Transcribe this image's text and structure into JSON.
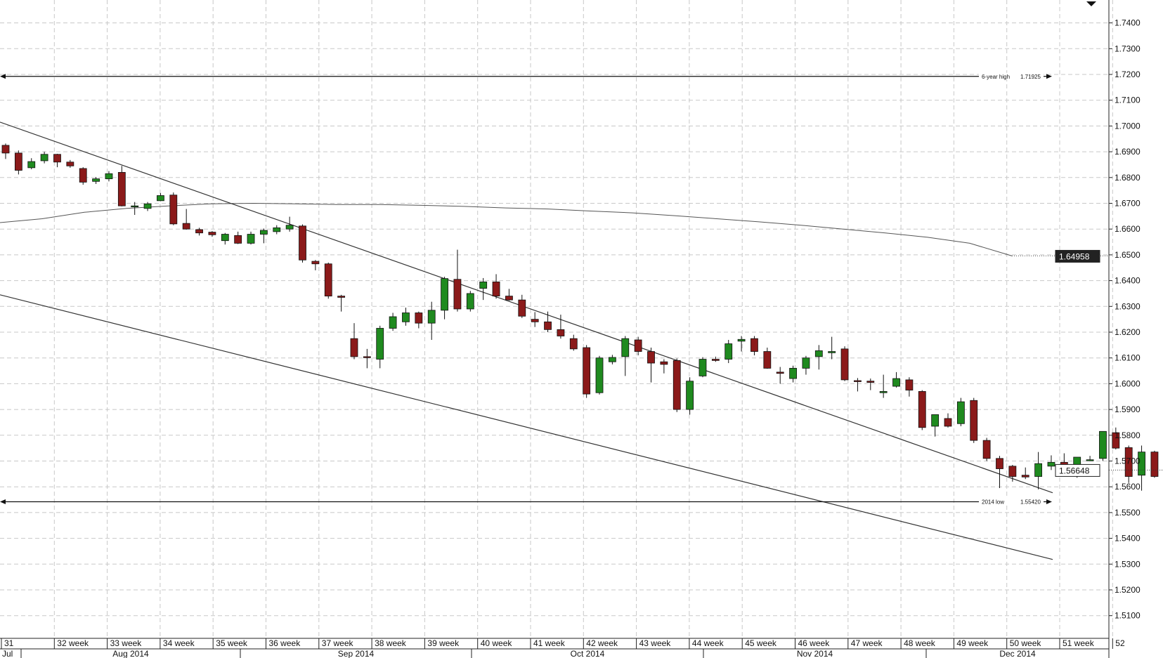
{
  "chart_data": {
    "type": "candlestick",
    "y_axis": {
      "range": [
        1.5005,
        1.7485
      ],
      "ticks": [
        "1.5100",
        "1.5200",
        "1.5300",
        "1.5400",
        "1.5500",
        "1.5600",
        "1.5700",
        "1.5800",
        "1.5900",
        "1.6000",
        "1.6100",
        "1.6200",
        "1.6300",
        "1.6400",
        "1.6500",
        "1.6600",
        "1.6700",
        "1.6800",
        "1.6900",
        "1.7000",
        "1.7100",
        "1.7200",
        "1.7300",
        "1.7400"
      ]
    },
    "week_labels": [
      "31",
      "32 week",
      "33 week",
      "34 week",
      "35 week",
      "36 week",
      "37 week",
      "38 week",
      "39 week",
      "40 week",
      "41 week",
      "42 week",
      "43 week",
      "44 week",
      "45 week",
      "46 week",
      "47 week",
      "48 week",
      "49 week",
      "50 week",
      "51 week",
      "52"
    ],
    "month_labels": [
      "Jul",
      "Aug 2014",
      "Sep 2014",
      "Oct 2014",
      "Nov 2014",
      "Dec 2014"
    ],
    "levels": [
      {
        "label": "6-year high",
        "value_text": "1.71925",
        "value": 1.71925
      },
      {
        "label": "2014 low",
        "value_text": "1.55420",
        "value": 1.5542
      }
    ],
    "price_boxes": [
      {
        "text": "1.64958",
        "value": 1.64958,
        "style": "dark"
      },
      {
        "text": "1.56648",
        "value": 1.56648,
        "style": "light"
      }
    ],
    "candles": [
      [
        1.6925,
        1.6932,
        1.6872,
        1.6895
      ],
      [
        1.6895,
        1.6905,
        1.6812,
        1.6828
      ],
      [
        1.6838,
        1.6875,
        1.6832,
        1.6862
      ],
      [
        1.6865,
        1.69,
        1.6855,
        1.689
      ],
      [
        1.689,
        1.6892,
        1.684,
        1.686
      ],
      [
        1.686,
        1.6868,
        1.6838,
        1.6845
      ],
      [
        1.6835,
        1.684,
        1.6772,
        1.6782
      ],
      [
        1.6785,
        1.6802,
        1.6775,
        1.6795
      ],
      [
        1.6795,
        1.6825,
        1.6785,
        1.6815
      ],
      [
        1.682,
        1.6845,
        1.6688,
        1.669
      ],
      [
        1.669,
        1.6705,
        1.6655,
        1.669
      ],
      [
        1.668,
        1.6705,
        1.667,
        1.6698
      ],
      [
        1.671,
        1.674,
        1.6708,
        1.673
      ],
      [
        1.6732,
        1.6742,
        1.6615,
        1.662
      ],
      [
        1.6622,
        1.6678,
        1.6598,
        1.66
      ],
      [
        1.6598,
        1.6605,
        1.6575,
        1.6585
      ],
      [
        1.6588,
        1.6592,
        1.657,
        1.6578
      ],
      [
        1.6555,
        1.6585,
        1.654,
        1.658
      ],
      [
        1.6575,
        1.659,
        1.6542,
        1.6545
      ],
      [
        1.6545,
        1.659,
        1.654,
        1.658
      ],
      [
        1.658,
        1.6602,
        1.6545,
        1.6595
      ],
      [
        1.659,
        1.6615,
        1.658,
        1.6605
      ],
      [
        1.66,
        1.6648,
        1.659,
        1.6615
      ],
      [
        1.6612,
        1.6618,
        1.647,
        1.648
      ],
      [
        1.6475,
        1.648,
        1.644,
        1.6465
      ],
      [
        1.6465,
        1.647,
        1.633,
        1.634
      ],
      [
        1.634,
        1.6345,
        1.628,
        1.6335
      ],
      [
        1.6175,
        1.6235,
        1.6095,
        1.6105
      ],
      [
        1.6105,
        1.6135,
        1.606,
        1.6102
      ],
      [
        1.6095,
        1.6225,
        1.606,
        1.6215
      ],
      [
        1.6215,
        1.6275,
        1.6205,
        1.626
      ],
      [
        1.624,
        1.6295,
        1.6225,
        1.6275
      ],
      [
        1.6275,
        1.628,
        1.6215,
        1.6235
      ],
      [
        1.6235,
        1.6318,
        1.617,
        1.6285
      ],
      [
        1.6285,
        1.6415,
        1.625,
        1.6408
      ],
      [
        1.6405,
        1.652,
        1.628,
        1.629
      ],
      [
        1.629,
        1.636,
        1.628,
        1.635
      ],
      [
        1.637,
        1.641,
        1.6325,
        1.6395
      ],
      [
        1.6395,
        1.6425,
        1.633,
        1.634
      ],
      [
        1.634,
        1.6368,
        1.6322,
        1.6325
      ],
      [
        1.6325,
        1.6345,
        1.6255,
        1.6262
      ],
      [
        1.625,
        1.6278,
        1.622,
        1.624
      ],
      [
        1.624,
        1.628,
        1.62,
        1.621
      ],
      [
        1.621,
        1.6268,
        1.6175,
        1.6185
      ],
      [
        1.6175,
        1.619,
        1.6128,
        1.6135
      ],
      [
        1.614,
        1.615,
        1.5945,
        1.596
      ],
      [
        1.5965,
        1.6108,
        1.5958,
        1.61
      ],
      [
        1.6085,
        1.6112,
        1.6075,
        1.6102
      ],
      [
        1.6105,
        1.6185,
        1.603,
        1.6175
      ],
      [
        1.617,
        1.6182,
        1.611,
        1.6125
      ],
      [
        1.6125,
        1.614,
        1.6005,
        1.608
      ],
      [
        1.6085,
        1.6095,
        1.604,
        1.6075
      ],
      [
        1.609,
        1.6098,
        1.589,
        1.59
      ],
      [
        1.59,
        1.6025,
        1.588,
        1.601
      ],
      [
        1.603,
        1.6103,
        1.6025,
        1.6095
      ],
      [
        1.6095,
        1.6105,
        1.6085,
        1.609
      ],
      [
        1.6095,
        1.617,
        1.608,
        1.6155
      ],
      [
        1.6165,
        1.6185,
        1.6125,
        1.6172
      ],
      [
        1.6175,
        1.6185,
        1.611,
        1.6125
      ],
      [
        1.6125,
        1.614,
        1.6058,
        1.606
      ],
      [
        1.6045,
        1.6065,
        1.6,
        1.604
      ],
      [
        1.602,
        1.607,
        1.6005,
        1.606
      ],
      [
        1.606,
        1.6108,
        1.6035,
        1.61
      ],
      [
        1.6105,
        1.615,
        1.6055,
        1.6128
      ],
      [
        1.612,
        1.6182,
        1.6095,
        1.6125
      ],
      [
        1.6135,
        1.6145,
        1.601,
        1.6015
      ],
      [
        1.6012,
        1.6022,
        1.597,
        1.6008
      ],
      [
        1.601,
        1.602,
        1.5975,
        1.6005
      ],
      [
        1.5965,
        1.6035,
        1.5945,
        1.597
      ],
      [
        1.599,
        1.6045,
        1.5985,
        1.602
      ],
      [
        1.6015,
        1.6025,
        1.595,
        1.5975
      ],
      [
        1.597,
        1.5975,
        1.582,
        1.583
      ],
      [
        1.5835,
        1.588,
        1.5795,
        1.588
      ],
      [
        1.5865,
        1.5885,
        1.583,
        1.5835
      ],
      [
        1.5845,
        1.5945,
        1.5835,
        1.593
      ],
      [
        1.5935,
        1.5945,
        1.577,
        1.578
      ],
      [
        1.578,
        1.579,
        1.57,
        1.571
      ],
      [
        1.571,
        1.572,
        1.5595,
        1.567
      ],
      [
        1.568,
        1.5685,
        1.562,
        1.564
      ],
      [
        1.5645,
        1.5675,
        1.563,
        1.5638
      ],
      [
        1.564,
        1.5735,
        1.559,
        1.569
      ],
      [
        1.568,
        1.5722,
        1.5665,
        1.5695
      ],
      [
        1.5695,
        1.573,
        1.564,
        1.566
      ],
      [
        1.5645,
        1.5715,
        1.5635,
        1.5715
      ],
      [
        1.5705,
        1.572,
        1.57,
        1.5705
      ],
      [
        1.571,
        1.581,
        1.57,
        1.5815
      ],
      [
        1.581,
        1.583,
        1.5745,
        1.575
      ],
      [
        1.5752,
        1.576,
        1.5615,
        1.564
      ],
      [
        1.5645,
        1.576,
        1.5585,
        1.5735
      ],
      [
        1.5735,
        1.574,
        1.5635,
        1.564
      ],
      [
        1.564,
        1.5715,
        1.563,
        1.5692
      ],
      [
        1.5695,
        1.57,
        1.567,
        1.568
      ],
      [
        1.568,
        1.57,
        1.561,
        1.567
      ],
      [
        1.567,
        1.5688,
        1.557,
        1.559
      ],
      [
        1.559,
        1.5665,
        1.5545,
        1.5665
      ],
      [
        1.564,
        1.569,
        1.563,
        1.5668
      ],
      [
        1.566,
        1.5735,
        1.565,
        1.5715
      ],
      [
        1.572,
        1.574,
        1.5675,
        1.5738
      ],
      [
        1.5738,
        1.5755,
        1.5705,
        1.572
      ],
      [
        1.574,
        1.5755,
        1.5645,
        1.566
      ],
      [
        1.5665,
        1.578,
        1.565,
        1.5755
      ],
      [
        1.5752,
        1.5755,
        1.558,
        1.558
      ],
      [
        1.558,
        1.5675,
        1.5575,
        1.5672
      ],
      [
        1.567,
        1.568,
        1.5662,
        1.5665
      ]
    ],
    "moving_average": [
      [
        0,
        1.6625
      ],
      [
        60,
        1.664
      ],
      [
        120,
        1.6665
      ],
      [
        180,
        1.668
      ],
      [
        240,
        1.669
      ],
      [
        300,
        1.6698
      ],
      [
        360,
        1.67
      ],
      [
        420,
        1.6698
      ],
      [
        480,
        1.6695
      ],
      [
        540,
        1.6695
      ],
      [
        600,
        1.6692
      ],
      [
        660,
        1.6688
      ],
      [
        720,
        1.6682
      ],
      [
        780,
        1.6678
      ],
      [
        840,
        1.667
      ],
      [
        900,
        1.6663
      ],
      [
        960,
        1.6652
      ],
      [
        1020,
        1.664
      ],
      [
        1080,
        1.6628
      ],
      [
        1140,
        1.6615
      ],
      [
        1200,
        1.66
      ],
      [
        1260,
        1.6585
      ],
      [
        1320,
        1.6568
      ],
      [
        1380,
        1.6545
      ],
      [
        1440,
        1.6496
      ]
    ],
    "trend_lines": [
      {
        "from": [
          0,
          1.7015
        ],
        "to": [
          1498,
          1.5577
        ]
      },
      {
        "from": [
          0,
          1.6345
        ],
        "to": [
          1498,
          1.5318
        ]
      }
    ]
  }
}
